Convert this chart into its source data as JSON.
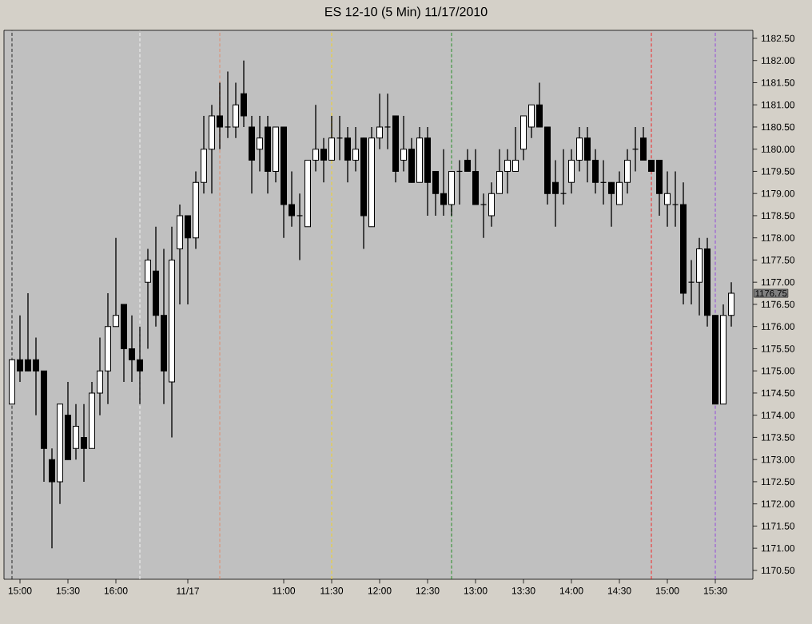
{
  "chart_data": {
    "type": "candlestick",
    "title": "ES 12-10 (5 Min) 11/17/2010",
    "categories": [
      null,
      "15:00",
      null,
      null,
      null,
      null,
      null,
      "15:30",
      null,
      null,
      null,
      null,
      null,
      "16:00",
      null,
      null,
      null,
      null,
      null,
      null,
      null,
      null,
      "11/17",
      null,
      null,
      null,
      null,
      null,
      null,
      null,
      null,
      null,
      null,
      null,
      "11:00",
      null,
      null,
      null,
      null,
      null,
      "11:30",
      null,
      null,
      null,
      null,
      null,
      "12:00",
      null,
      null,
      null,
      null,
      null,
      "12:30",
      null,
      null,
      null,
      null,
      null,
      "13:00",
      null,
      null,
      null,
      null,
      null,
      "13:30",
      null,
      null,
      null,
      null,
      null,
      "14:00",
      null,
      null,
      null,
      null,
      null,
      "14:30",
      null,
      null,
      null,
      null,
      null,
      "15:00",
      null,
      null,
      null,
      null,
      null,
      "15:30",
      null,
      null
    ],
    "ohlc": [
      [
        1174.25,
        1175.25,
        1174.25,
        1175.25
      ],
      [
        1175.25,
        1176.25,
        1174.75,
        1175.0
      ],
      [
        1175.25,
        1176.75,
        1175.0,
        1175.0
      ],
      [
        1175.25,
        1175.75,
        1174.0,
        1175.0
      ],
      [
        1175.0,
        1175.0,
        1172.5,
        1173.25
      ],
      [
        1173.0,
        1173.25,
        1171.0,
        1172.5
      ],
      [
        1172.5,
        1174.25,
        1172.0,
        1174.25
      ],
      [
        1174.0,
        1174.75,
        1173.0,
        1173.0
      ],
      [
        1173.25,
        1174.25,
        1173.0,
        1173.75
      ],
      [
        1173.5,
        1174.25,
        1172.5,
        1173.25
      ],
      [
        1173.25,
        1174.75,
        1173.25,
        1174.5
      ],
      [
        1174.5,
        1175.75,
        1174.0,
        1175.0
      ],
      [
        1175.0,
        1176.75,
        1174.25,
        1176.0
      ],
      [
        1176.0,
        1178.0,
        1176.0,
        1176.25
      ],
      [
        1176.5,
        1176.5,
        1174.75,
        1175.5
      ],
      [
        1175.5,
        1176.25,
        1174.75,
        1175.25
      ],
      [
        1175.25,
        1176.0,
        1174.25,
        1175.0
      ],
      [
        1177.0,
        1177.75,
        1175.5,
        1177.5
      ],
      [
        1177.25,
        1178.25,
        1176.0,
        1176.25
      ],
      [
        1176.25,
        1177.75,
        1174.25,
        1175.0
      ],
      [
        1174.75,
        1178.25,
        1173.5,
        1177.5
      ],
      [
        1177.75,
        1178.75,
        1176.5,
        1178.5
      ],
      [
        1178.5,
        1178.5,
        1176.5,
        1178.0
      ],
      [
        1178.0,
        1179.5,
        1177.75,
        1179.25
      ],
      [
        1179.25,
        1180.75,
        1179.0,
        1180.0
      ],
      [
        1180.0,
        1181.0,
        1179.0,
        1180.75
      ],
      [
        1180.75,
        1181.5,
        1180.0,
        1180.5
      ],
      [
        1180.5,
        1181.75,
        1180.25,
        1180.5
      ],
      [
        1180.5,
        1181.5,
        1180.25,
        1181.0
      ],
      [
        1181.25,
        1182.0,
        1180.5,
        1180.75
      ],
      [
        1180.5,
        1180.75,
        1179.0,
        1179.75
      ],
      [
        1180.0,
        1180.75,
        1179.5,
        1180.25
      ],
      [
        1180.5,
        1180.75,
        1179.0,
        1179.5
      ],
      [
        1179.5,
        1180.5,
        1179.25,
        1180.5
      ],
      [
        1180.5,
        1180.5,
        1178.0,
        1178.75
      ],
      [
        1178.75,
        1179.5,
        1178.25,
        1178.5
      ],
      [
        1178.5,
        1179.0,
        1177.5,
        1178.5
      ],
      [
        1178.25,
        1179.75,
        1178.25,
        1179.75
      ],
      [
        1179.75,
        1181.0,
        1179.5,
        1180.0
      ],
      [
        1180.0,
        1180.25,
        1179.25,
        1179.75
      ],
      [
        1179.75,
        1180.75,
        1179.75,
        1180.25
      ],
      [
        1180.25,
        1180.75,
        1179.75,
        1180.25
      ],
      [
        1180.25,
        1180.5,
        1179.25,
        1179.75
      ],
      [
        1179.75,
        1180.5,
        1179.5,
        1180.0
      ],
      [
        1180.25,
        1180.25,
        1177.75,
        1178.5
      ],
      [
        1178.25,
        1180.5,
        1178.25,
        1180.25
      ],
      [
        1180.25,
        1181.25,
        1180.0,
        1180.5
      ],
      [
        1180.5,
        1181.25,
        1180.0,
        1180.5
      ],
      [
        1180.75,
        1180.75,
        1179.25,
        1179.5
      ],
      [
        1179.75,
        1180.75,
        1179.5,
        1180.0
      ],
      [
        1180.0,
        1180.25,
        1179.25,
        1179.25
      ],
      [
        1179.25,
        1180.5,
        1179.25,
        1180.25
      ],
      [
        1180.25,
        1180.5,
        1178.5,
        1179.25
      ],
      [
        1179.5,
        1179.5,
        1178.5,
        1179.0
      ],
      [
        1179.0,
        1180.0,
        1178.5,
        1178.75
      ],
      [
        1178.75,
        1179.5,
        1178.5,
        1179.5
      ],
      [
        1179.5,
        1179.75,
        1178.75,
        1179.5
      ],
      [
        1179.75,
        1180.0,
        1179.5,
        1179.5
      ],
      [
        1179.5,
        1180.0,
        1178.75,
        1178.75
      ],
      [
        1178.75,
        1179.0,
        1178.0,
        1178.75
      ],
      [
        1178.5,
        1179.25,
        1178.25,
        1179.0
      ],
      [
        1179.0,
        1180.0,
        1179.0,
        1179.5
      ],
      [
        1179.5,
        1180.0,
        1179.0,
        1179.75
      ],
      [
        1179.5,
        1180.5,
        1179.5,
        1179.75
      ],
      [
        1180.0,
        1180.75,
        1179.75,
        1180.75
      ],
      [
        1180.5,
        1181.0,
        1180.25,
        1181.0
      ],
      [
        1181.0,
        1181.5,
        1180.5,
        1180.5
      ],
      [
        1180.5,
        1180.5,
        1178.75,
        1179.0
      ],
      [
        1179.25,
        1179.75,
        1178.25,
        1179.0
      ],
      [
        1179.0,
        1180.0,
        1178.75,
        1179.0
      ],
      [
        1179.25,
        1180.0,
        1179.0,
        1179.75
      ],
      [
        1179.75,
        1180.5,
        1179.5,
        1180.25
      ],
      [
        1180.25,
        1180.5,
        1179.25,
        1179.75
      ],
      [
        1179.75,
        1180.0,
        1179.0,
        1179.25
      ],
      [
        1179.25,
        1179.75,
        1178.75,
        1179.25
      ],
      [
        1179.25,
        1179.25,
        1178.25,
        1179.0
      ],
      [
        1178.75,
        1179.5,
        1178.75,
        1179.25
      ],
      [
        1179.25,
        1180.0,
        1179.0,
        1179.75
      ],
      [
        1180.0,
        1180.5,
        1179.5,
        1180.0
      ],
      [
        1180.25,
        1180.5,
        1179.75,
        1179.75
      ],
      [
        1179.75,
        1179.75,
        1179.5,
        1179.5
      ],
      [
        1179.75,
        1179.75,
        1178.5,
        1179.0
      ],
      [
        1178.75,
        1179.5,
        1178.25,
        1179.0
      ],
      [
        1178.75,
        1179.5,
        1178.25,
        1178.75
      ],
      [
        1178.75,
        1179.25,
        1176.5,
        1176.75
      ],
      [
        1177.0,
        1177.5,
        1176.5,
        1177.0
      ],
      [
        1177.0,
        1178.0,
        1176.25,
        1177.75
      ],
      [
        1177.75,
        1178.0,
        1176.0,
        1176.25
      ],
      [
        1176.25,
        1176.25,
        1174.25,
        1174.25
      ],
      [
        1174.25,
        1176.5,
        1174.25,
        1176.25
      ],
      [
        1176.25,
        1177.0,
        1176.0,
        1176.75
      ]
    ],
    "ylim": [
      1170.3,
      1182.68
    ],
    "yticks": [
      {
        "value": 1170.5,
        "label": "1170.50"
      },
      {
        "value": 1171,
        "label": "1171.00"
      },
      {
        "value": 1171.5,
        "label": "1171.50"
      },
      {
        "value": 1172,
        "label": "1172.00"
      },
      {
        "value": 1172.5,
        "label": "1172.50"
      },
      {
        "value": 1173,
        "label": "1173.00"
      },
      {
        "value": 1173.5,
        "label": "1173.50"
      },
      {
        "value": 1174,
        "label": "1174.00"
      },
      {
        "value": 1174.5,
        "label": "1174.50"
      },
      {
        "value": 1175,
        "label": "1175.00"
      },
      {
        "value": 1175.5,
        "label": "1175.50"
      },
      {
        "value": 1176,
        "label": "1176.00"
      },
      {
        "value": 1176.5,
        "label": "1176.50"
      },
      {
        "value": 1177,
        "label": "1177.00"
      },
      {
        "value": 1177.5,
        "label": "1177.50"
      },
      {
        "value": 1178,
        "label": "1178.00"
      },
      {
        "value": 1178.5,
        "label": "1178.50"
      },
      {
        "value": 1179,
        "label": "1179.00"
      },
      {
        "value": 1179.5,
        "label": "1179.50"
      },
      {
        "value": 1180,
        "label": "1180.00"
      },
      {
        "value": 1180.5,
        "label": "1180.50"
      },
      {
        "value": 1181,
        "label": "1181.00"
      },
      {
        "value": 1181.5,
        "label": "1181.50"
      },
      {
        "value": 1182,
        "label": "1182.00"
      },
      {
        "value": 1182.5,
        "label": "1182.50"
      }
    ],
    "annotations": [
      "1176.75"
    ]
  }
}
